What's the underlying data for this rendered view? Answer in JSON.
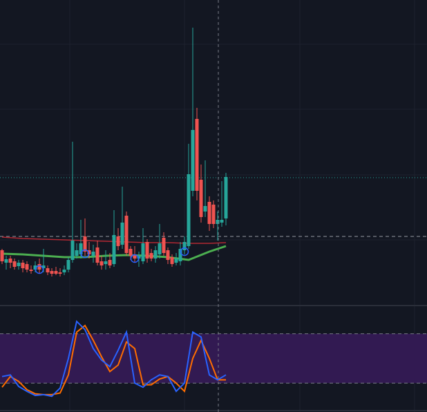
{
  "chart_data": [
    {
      "type": "candlestick",
      "ylim": [
        0,
        440
      ],
      "up_color": "#26a69a",
      "down_color": "#ef5350",
      "open": [
        78,
        60,
        66,
        62,
        55,
        60,
        58,
        50,
        50,
        58,
        52,
        52,
        48,
        48,
        46,
        46,
        50,
        64,
        70,
        72,
        98,
        78,
        70,
        82,
        62,
        58,
        64,
        58,
        98,
        86,
        128,
        80,
        72,
        66,
        62,
        90,
        74,
        66,
        72,
        96,
        78,
        68,
        60,
        62,
        78,
        84,
        164,
        268,
        180,
        134,
        148,
        144,
        116,
        118,
        124
      ],
      "high": [
        80,
        70,
        70,
        66,
        64,
        64,
        62,
        56,
        62,
        66,
        80,
        56,
        52,
        54,
        52,
        56,
        68,
        235,
        88,
        122,
        124,
        90,
        86,
        92,
        70,
        78,
        74,
        136,
        110,
        170,
        134,
        84,
        84,
        76,
        110,
        94,
        80,
        84,
        116,
        104,
        82,
        72,
        74,
        90,
        98,
        232,
        400,
        284,
        202,
        208,
        156,
        150,
        134,
        178,
        190
      ],
      "low": [
        58,
        50,
        52,
        50,
        50,
        46,
        46,
        44,
        46,
        44,
        46,
        42,
        40,
        42,
        40,
        42,
        46,
        60,
        66,
        66,
        70,
        66,
        60,
        56,
        50,
        50,
        52,
        54,
        78,
        80,
        70,
        64,
        60,
        54,
        58,
        60,
        62,
        60,
        66,
        70,
        58,
        54,
        56,
        56,
        72,
        80,
        156,
        150,
        118,
        126,
        106,
        110,
        92,
        112,
        114
      ],
      "close": [
        62,
        65,
        60,
        54,
        60,
        52,
        50,
        48,
        56,
        50,
        56,
        46,
        44,
        44,
        44,
        50,
        64,
        92,
        78,
        88,
        76,
        72,
        76,
        60,
        56,
        62,
        56,
        100,
        84,
        118,
        74,
        70,
        66,
        70,
        88,
        66,
        66,
        78,
        88,
        74,
        64,
        58,
        66,
        80,
        90,
        188,
        252,
        164,
        126,
        142,
        116,
        116,
        122,
        122,
        184
      ],
      "series": [
        {
          "x": [
            0,
            5,
            10,
            15,
            20,
            25,
            30,
            35,
            40,
            45,
            50,
            54
          ],
          "values": [
            97,
            95,
            94,
            93,
            92,
            91,
            90,
            89,
            89,
            88,
            88,
            89
          ],
          "color": "#b22833"
        },
        {
          "x": [
            0,
            5,
            10,
            15,
            20,
            25,
            30,
            35,
            40,
            45,
            50,
            54
          ],
          "values": [
            73,
            72,
            70,
            68,
            68,
            70,
            71,
            70,
            68,
            64,
            76,
            84
          ],
          "color": "#4caf50"
        }
      ],
      "signals": {
        "x": [
          9,
          20,
          32,
          44
        ],
        "values": [
          50,
          73,
          66,
          76
        ],
        "color": "#2962ff"
      },
      "hlines": [
        {
          "value": 183,
          "color": "#26a69a"
        },
        {
          "value": 98,
          "color": "#9598a1"
        }
      ]
    },
    {
      "type": "line",
      "ylim": [
        0,
        100
      ],
      "bands": [
        20,
        80
      ],
      "band_color": "#321a52",
      "x": [
        0,
        2,
        4,
        6,
        8,
        10,
        12,
        14,
        16,
        18,
        20,
        22,
        24,
        26,
        28,
        30,
        32,
        34,
        36,
        38,
        40,
        42,
        44,
        46,
        48,
        50,
        52,
        54
      ],
      "series": [
        {
          "color": "#2962ff",
          "values": [
            28,
            30,
            16,
            10,
            5,
            6,
            4,
            14,
            50,
            95,
            85,
            62,
            48,
            40,
            60,
            82,
            20,
            15,
            24,
            30,
            28,
            10,
            20,
            82,
            76,
            30,
            24,
            30
          ]
        },
        {
          "color": "#ff6d00",
          "values": [
            15,
            28,
            22,
            12,
            7,
            6,
            6,
            8,
            30,
            82,
            90,
            72,
            52,
            34,
            42,
            70,
            62,
            18,
            18,
            25,
            28,
            20,
            10,
            50,
            72,
            50,
            24,
            24
          ]
        }
      ]
    }
  ]
}
